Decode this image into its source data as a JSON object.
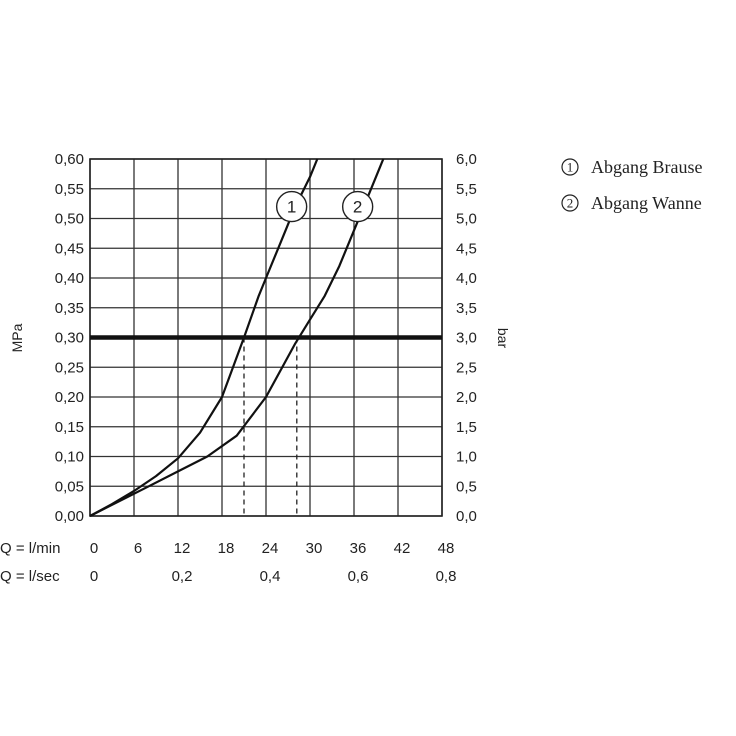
{
  "chart_data": {
    "type": "line",
    "xlim": [
      0,
      48
    ],
    "ylim": [
      0,
      0.6
    ],
    "grid": true,
    "legend_position": "top-right",
    "xlabel_rows": [
      {
        "label": "Q = l/min",
        "ticks": [
          {
            "x": 0,
            "text": "0"
          },
          {
            "x": 6,
            "text": "6"
          },
          {
            "x": 12,
            "text": "12"
          },
          {
            "x": 18,
            "text": "18"
          },
          {
            "x": 24,
            "text": "24"
          },
          {
            "x": 30,
            "text": "30"
          },
          {
            "x": 36,
            "text": "36"
          },
          {
            "x": 42,
            "text": "42"
          },
          {
            "x": 48,
            "text": "48"
          }
        ]
      },
      {
        "label": "Q = l/sec",
        "ticks": [
          {
            "x": 0,
            "text": "0"
          },
          {
            "x": 12,
            "text": "0,2"
          },
          {
            "x": 24,
            "text": "0,4"
          },
          {
            "x": 36,
            "text": "0,6"
          },
          {
            "x": 48,
            "text": "0,8"
          }
        ]
      }
    ],
    "ylabel_left": "MPa",
    "ylabel_right": "bar",
    "y_ticks_left": [
      {
        "y": 0.0,
        "text": "0,00"
      },
      {
        "y": 0.05,
        "text": "0,05"
      },
      {
        "y": 0.1,
        "text": "0,10"
      },
      {
        "y": 0.15,
        "text": "0,15"
      },
      {
        "y": 0.2,
        "text": "0,20"
      },
      {
        "y": 0.25,
        "text": "0,25"
      },
      {
        "y": 0.3,
        "text": "0,30"
      },
      {
        "y": 0.35,
        "text": "0,35"
      },
      {
        "y": 0.4,
        "text": "0,40"
      },
      {
        "y": 0.45,
        "text": "0,45"
      },
      {
        "y": 0.5,
        "text": "0,50"
      },
      {
        "y": 0.55,
        "text": "0,55"
      },
      {
        "y": 0.6,
        "text": "0,60"
      }
    ],
    "y_ticks_right": [
      {
        "y": 0.0,
        "text": "0,0"
      },
      {
        "y": 0.05,
        "text": "0,5"
      },
      {
        "y": 0.1,
        "text": "1,0"
      },
      {
        "y": 0.15,
        "text": "1,5"
      },
      {
        "y": 0.2,
        "text": "2,0"
      },
      {
        "y": 0.25,
        "text": "2,5"
      },
      {
        "y": 0.3,
        "text": "3,0"
      },
      {
        "y": 0.35,
        "text": "3,5"
      },
      {
        "y": 0.4,
        "text": "4,0"
      },
      {
        "y": 0.45,
        "text": "4,5"
      },
      {
        "y": 0.5,
        "text": "5,0"
      },
      {
        "y": 0.55,
        "text": "5,5"
      },
      {
        "y": 0.6,
        "text": "6,0"
      }
    ],
    "reference_line": {
      "y": 0.3
    },
    "series": [
      {
        "name": "Abgang Brause",
        "marker": "1",
        "marker_at": {
          "x": 27.5,
          "y": 0.52
        },
        "values": [
          {
            "x": 0,
            "y": 0
          },
          {
            "x": 3,
            "y": 0.02
          },
          {
            "x": 6,
            "y": 0.042
          },
          {
            "x": 9,
            "y": 0.067
          },
          {
            "x": 12,
            "y": 0.097
          },
          {
            "x": 15,
            "y": 0.14
          },
          {
            "x": 18,
            "y": 0.2
          },
          {
            "x": 21,
            "y": 0.3
          },
          {
            "x": 23,
            "y": 0.37
          },
          {
            "x": 24,
            "y": 0.4
          },
          {
            "x": 26,
            "y": 0.46
          },
          {
            "x": 28,
            "y": 0.52
          },
          {
            "x": 30,
            "y": 0.57
          },
          {
            "x": 31,
            "y": 0.6
          }
        ]
      },
      {
        "name": "Abgang Wanne",
        "marker": "2",
        "marker_at": {
          "x": 36.5,
          "y": 0.52
        },
        "values": [
          {
            "x": 0,
            "y": 0
          },
          {
            "x": 4,
            "y": 0.025
          },
          {
            "x": 8,
            "y": 0.05
          },
          {
            "x": 12,
            "y": 0.075
          },
          {
            "x": 16,
            "y": 0.1
          },
          {
            "x": 20,
            "y": 0.135
          },
          {
            "x": 24,
            "y": 0.2
          },
          {
            "x": 28,
            "y": 0.29
          },
          {
            "x": 30,
            "y": 0.33
          },
          {
            "x": 32,
            "y": 0.37
          },
          {
            "x": 34,
            "y": 0.42
          },
          {
            "x": 36,
            "y": 0.48
          },
          {
            "x": 38,
            "y": 0.54
          },
          {
            "x": 40,
            "y": 0.6
          }
        ]
      }
    ],
    "dashed_drops": [
      {
        "x": 21,
        "y": 0.3
      },
      {
        "x": 28.2,
        "y": 0.3
      }
    ]
  },
  "legend": {
    "items": [
      {
        "number": "1",
        "label": "Abgang Brause"
      },
      {
        "number": "2",
        "label": "Abgang Wanne"
      }
    ]
  }
}
